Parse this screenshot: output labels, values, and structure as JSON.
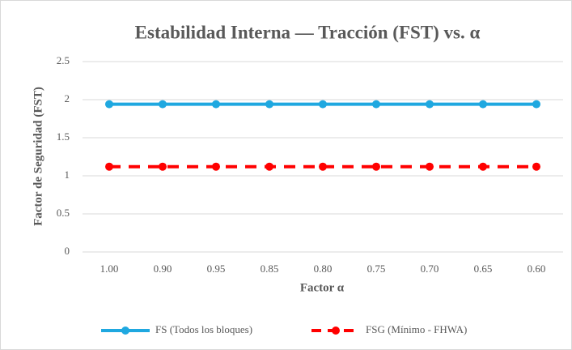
{
  "chart_data": {
    "type": "line",
    "title": "Estabilidad Interna — Tracción (FST) vs. α",
    "x_label": "Factor α",
    "y_label": "Factor de Seguridad (FST)",
    "categories": [
      "1.00",
      "0.90",
      "0.95",
      "0.85",
      "0.80",
      "0.75",
      "0.70",
      "0.65",
      "0.60"
    ],
    "series": [
      {
        "name": "FS (Todos los bloques)",
        "color": "#1fa8e0",
        "style": "solid",
        "values": [
          1.94,
          1.94,
          1.94,
          1.94,
          1.94,
          1.94,
          1.94,
          1.94,
          1.94
        ]
      },
      {
        "name": "FSG (Mínimo - FHWA)",
        "color": "#ff0000",
        "style": "dashed",
        "values": [
          1.12,
          1.12,
          1.12,
          1.12,
          1.12,
          1.12,
          1.12,
          1.12,
          1.12
        ]
      }
    ],
    "ylim": [
      0,
      2.5
    ],
    "yticks": [
      0,
      0.5,
      1,
      1.5,
      2,
      2.5
    ],
    "grid": true,
    "legend": "bottom"
  }
}
